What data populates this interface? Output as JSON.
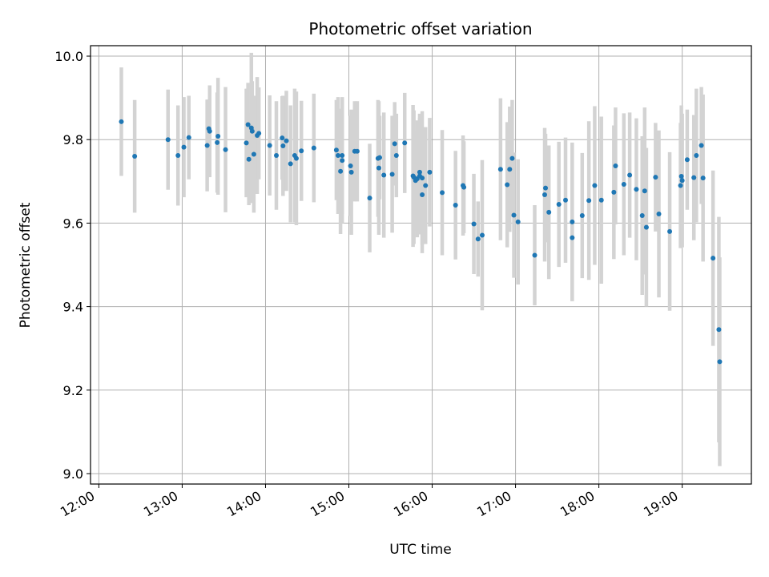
{
  "chart_data": {
    "type": "scatter",
    "title": "Photometric offset variation",
    "xlabel": "UTC time",
    "ylabel": "Photometric offset",
    "x_unit": "hours (UTC)",
    "xlim": [
      11.9,
      19.83
    ],
    "ylim": [
      8.975,
      10.025
    ],
    "x_ticks": [
      12,
      13,
      14,
      15,
      16,
      17,
      18,
      19
    ],
    "x_tick_labels": [
      "12:00",
      "13:00",
      "14:00",
      "15:00",
      "16:00",
      "17:00",
      "18:00",
      "19:00"
    ],
    "y_ticks": [
      9.0,
      9.2,
      9.4,
      9.6,
      9.8,
      10.0
    ],
    "y_tick_labels": [
      "9.0",
      "9.2",
      "9.4",
      "9.6",
      "9.8",
      "10.0"
    ],
    "grid": true,
    "legend": "none",
    "colors": {
      "points": "#1f77b4",
      "errorbars": "#d3d3d3",
      "grid": "#b0b0b0"
    },
    "series": [
      {
        "x": [
          12.27,
          12.43,
          12.83,
          12.95,
          13.02,
          13.08,
          13.3,
          13.32,
          13.33,
          13.42,
          13.43,
          13.52,
          13.77,
          13.79,
          13.8,
          13.83,
          13.84,
          13.86,
          13.9,
          13.92,
          14.05,
          14.13,
          14.2,
          14.21,
          14.25,
          14.3,
          14.35,
          14.37,
          14.43,
          14.58,
          14.85,
          14.87,
          14.9,
          14.92,
          14.92,
          15.02,
          15.03,
          15.07,
          15.1,
          15.25,
          15.35,
          15.36,
          15.37,
          15.42,
          15.52,
          15.55,
          15.57,
          15.67,
          15.77,
          15.78,
          15.8,
          15.82,
          15.85,
          15.85,
          15.88,
          15.88,
          15.92,
          15.97,
          16.12,
          16.28,
          16.37,
          16.38,
          16.5,
          16.55,
          16.6,
          16.82,
          16.9,
          16.93,
          16.96,
          16.98,
          17.03,
          17.23,
          17.35,
          17.36,
          17.4,
          17.52,
          17.6,
          17.68,
          17.68,
          17.8,
          17.88,
          17.95,
          18.03,
          18.18,
          18.2,
          18.3,
          18.37,
          18.45,
          18.52,
          18.55,
          18.57,
          18.68,
          18.72,
          18.85,
          18.98,
          18.99,
          19.0,
          19.06,
          19.14,
          19.17,
          19.23,
          19.25,
          19.37,
          19.44,
          19.45
        ],
        "y": [
          9.843,
          9.76,
          9.8,
          9.762,
          9.782,
          9.805,
          9.786,
          9.826,
          9.82,
          9.793,
          9.808,
          9.776,
          9.792,
          9.836,
          9.753,
          9.828,
          9.82,
          9.765,
          9.81,
          9.815,
          9.786,
          9.762,
          9.804,
          9.785,
          9.797,
          9.742,
          9.762,
          9.755,
          9.773,
          9.78,
          9.775,
          9.762,
          9.724,
          9.762,
          9.75,
          9.737,
          9.722,
          9.772,
          9.772,
          9.66,
          9.755,
          9.732,
          9.757,
          9.715,
          9.717,
          9.79,
          9.762,
          9.792,
          9.713,
          9.71,
          9.702,
          9.706,
          9.722,
          9.713,
          9.668,
          9.708,
          9.69,
          9.722,
          9.673,
          9.643,
          9.69,
          9.686,
          9.598,
          9.562,
          9.571,
          9.729,
          9.692,
          9.729,
          9.755,
          9.619,
          9.603,
          9.523,
          9.668,
          9.684,
          9.626,
          9.645,
          9.655,
          9.565,
          9.603,
          9.618,
          9.654,
          9.69,
          9.655,
          9.674,
          9.737,
          9.693,
          9.715,
          9.681,
          9.618,
          9.677,
          9.59,
          9.71,
          9.622,
          9.58,
          9.69,
          9.712,
          9.702,
          9.752,
          9.709,
          9.762,
          9.786,
          9.708,
          9.516,
          9.345,
          9.268
        ],
        "err": [
          0.13,
          0.135,
          0.12,
          0.12,
          0.12,
          0.1,
          0.11,
          0.07,
          0.11,
          0.12,
          0.14,
          0.15,
          0.13,
          0.1,
          0.11,
          0.18,
          0.12,
          0.14,
          0.14,
          0.11,
          0.12,
          0.13,
          0.1,
          0.12,
          0.12,
          0.14,
          0.16,
          0.16,
          0.12,
          0.13,
          0.12,
          0.14,
          0.15,
          0.14,
          0.15,
          0.12,
          0.15,
          0.12,
          0.12,
          0.13,
          0.14,
          0.16,
          0.1,
          0.15,
          0.14,
          0.1,
          0.1,
          0.12,
          0.17,
          0.16,
          0.12,
          0.14,
          0.14,
          0.14,
          0.14,
          0.16,
          0.14,
          0.13,
          0.15,
          0.13,
          0.12,
          0.11,
          0.12,
          0.09,
          0.18,
          0.17,
          0.15,
          0.15,
          0.14,
          0.15,
          0.15,
          0.12,
          0.16,
          0.13,
          0.16,
          0.15,
          0.15,
          0.15,
          0.19,
          0.15,
          0.19,
          0.19,
          0.2,
          0.16,
          0.14,
          0.17,
          0.15,
          0.17,
          0.19,
          0.2,
          0.19,
          0.13,
          0.2,
          0.19,
          0.15,
          0.17,
          0.16,
          0.12,
          0.15,
          0.16,
          0.14,
          0.2,
          0.21,
          0.27,
          0.25
        ]
      }
    ]
  }
}
